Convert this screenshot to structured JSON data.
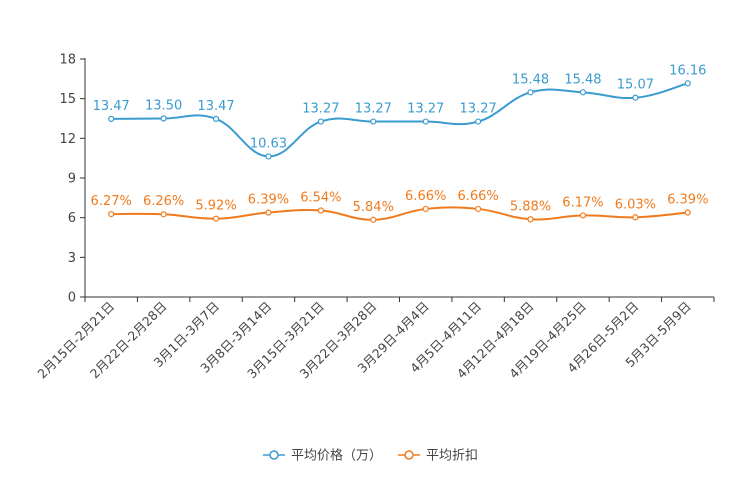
{
  "chart_data": {
    "type": "line",
    "title": "",
    "xlabel": "",
    "ylabel": "",
    "ylim": [
      0,
      18
    ],
    "yticks": [
      0,
      3,
      6,
      9,
      12,
      15,
      18
    ],
    "grid": false,
    "legend_position": "bottom-center",
    "categories": [
      "2月15日-2月21日",
      "2月22日-2月28日",
      "3月1日-3月7日",
      "3月8日-3月14日",
      "3月15日-3月21日",
      "3月22日-3月28日",
      "3月29日-4月4日",
      "4月5日-4月11日",
      "4月12日-4月18日",
      "4月19日-4月25日",
      "4月26日-5月2日",
      "5月3日-5月9日"
    ],
    "series": [
      {
        "name": "平均价格（万）",
        "color": "#3a9bd0",
        "values": [
          13.47,
          13.5,
          13.47,
          10.63,
          13.27,
          13.27,
          13.27,
          13.27,
          15.48,
          15.48,
          15.07,
          16.16
        ],
        "labels": [
          "13.47",
          "13.50",
          "13.47",
          "10.63",
          "13.27",
          "13.27",
          "13.27",
          "13.27",
          "15.48",
          "15.48",
          "15.07",
          "16.16"
        ]
      },
      {
        "name": "平均折扣",
        "color": "#f07b1e",
        "values": [
          6.27,
          6.26,
          5.92,
          6.39,
          6.54,
          5.84,
          6.66,
          6.66,
          5.88,
          6.17,
          6.03,
          6.39
        ],
        "labels": [
          "6.27%",
          "6.26%",
          "5.92%",
          "6.39%",
          "6.54%",
          "5.84%",
          "6.66%",
          "6.66%",
          "5.88%",
          "6.17%",
          "6.03%",
          "6.39%"
        ]
      }
    ]
  }
}
